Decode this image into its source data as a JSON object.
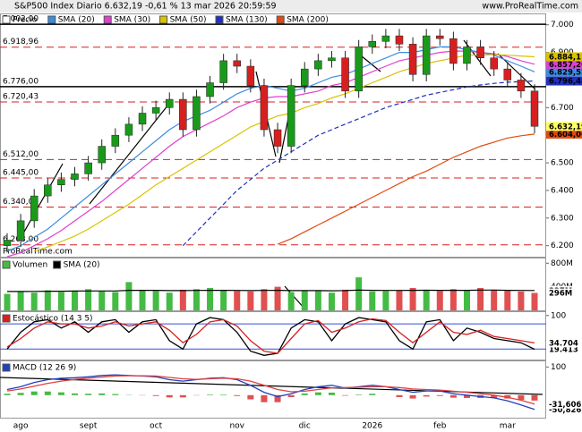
{
  "header": {
    "title": "S&P500 Index Diario 6.632,19 -0,61 % 13 mar 2026 20:59:59",
    "site": "www.ProRealTime.com"
  },
  "chart_data": [
    {
      "type": "candlestick",
      "legend_name": "Precio",
      "watermark": "ProRealTime.com",
      "categories": [
        null,
        "ago",
        null,
        null,
        null,
        null,
        "sept",
        null,
        null,
        null,
        null,
        "oct",
        null,
        null,
        null,
        null,
        null,
        "nov",
        null,
        null,
        null,
        null,
        "dic",
        null,
        null,
        null,
        null,
        "2026",
        null,
        null,
        null,
        null,
        "feb",
        null,
        null,
        null,
        null,
        "mar",
        null,
        null
      ],
      "open": [
        6200,
        6220,
        6290,
        6380,
        6420,
        6440,
        6460,
        6500,
        6560,
        6600,
        6640,
        6680,
        6700,
        6730,
        6620,
        6740,
        6790,
        6870,
        6850,
        6780,
        6620,
        6560,
        6780,
        6840,
        6870,
        6880,
        6760,
        6920,
        6940,
        6960,
        6930,
        6820,
        6960,
        6950,
        6860,
        6920,
        6880,
        6840,
        6800,
        6760
      ],
      "high": [
        6245,
        6315,
        6405,
        6445,
        6465,
        6485,
        6525,
        6585,
        6625,
        6665,
        6705,
        6725,
        6755,
        6755,
        6765,
        6815,
        6895,
        6895,
        6875,
        6805,
        6645,
        6805,
        6865,
        6895,
        6905,
        6905,
        6945,
        6965,
        6985,
        6985,
        6955,
        6985,
        6985,
        6975,
        6945,
        6945,
        6905,
        6865,
        6825,
        6785
      ],
      "low": [
        6175,
        6195,
        6265,
        6355,
        6395,
        6415,
        6435,
        6475,
        6535,
        6575,
        6615,
        6655,
        6675,
        6595,
        6595,
        6715,
        6765,
        6825,
        6755,
        6595,
        6535,
        6535,
        6755,
        6815,
        6845,
        6735,
        6735,
        6895,
        6915,
        6905,
        6795,
        6795,
        6925,
        6835,
        6835,
        6855,
        6815,
        6775,
        6735,
        6607
      ],
      "close": [
        6220,
        6290,
        6380,
        6420,
        6440,
        6460,
        6500,
        6560,
        6600,
        6640,
        6680,
        6700,
        6730,
        6620,
        6740,
        6790,
        6870,
        6850,
        6780,
        6620,
        6560,
        6780,
        6840,
        6870,
        6880,
        6760,
        6920,
        6940,
        6960,
        6930,
        6820,
        6960,
        6950,
        6860,
        6920,
        6880,
        6840,
        6800,
        6760,
        6632.19
      ],
      "last_label": "6.632,19",
      "up_color": "#1a9a1a",
      "down_color": "#d62020",
      "last_color": "#ffff66",
      "series": [
        {
          "name": "SMA (20)",
          "color": "#3b8de0",
          "last_label": "6.829,52",
          "values": [
            6180,
            6200,
            6230,
            6260,
            6300,
            6340,
            6380,
            6420,
            6460,
            6500,
            6540,
            6580,
            6620,
            6650,
            6670,
            6690,
            6720,
            6750,
            6770,
            6780,
            6770,
            6760,
            6770,
            6790,
            6810,
            6820,
            6840,
            6860,
            6880,
            6900,
            6900,
            6910,
            6920,
            6920,
            6910,
            6900,
            6890,
            6870,
            6850,
            6829.52
          ]
        },
        {
          "name": "SMA (30)",
          "color": "#e040d0",
          "last_label": "6.857,26",
          "values": [
            6160,
            6175,
            6200,
            6225,
            6255,
            6290,
            6325,
            6360,
            6400,
            6440,
            6480,
            6520,
            6560,
            6595,
            6620,
            6645,
            6670,
            6700,
            6720,
            6735,
            6740,
            6740,
            6750,
            6760,
            6780,
            6790,
            6810,
            6830,
            6850,
            6870,
            6880,
            6890,
            6900,
            6905,
            6905,
            6900,
            6895,
            6885,
            6870,
            6857.26
          ]
        },
        {
          "name": "SMA (50)",
          "color": "#d8c400",
          "last_label": "6.884,11",
          "values": [
            null,
            null,
            6180,
            6195,
            6215,
            6235,
            6260,
            6290,
            6320,
            6350,
            6385,
            6420,
            6450,
            6480,
            6510,
            6540,
            6570,
            6600,
            6630,
            6650,
            6670,
            6680,
            6700,
            6715,
            6735,
            6750,
            6770,
            6790,
            6810,
            6830,
            6845,
            6860,
            6870,
            6880,
            6890,
            6890,
            6892,
            6890,
            6887,
            6884.11
          ]
        },
        {
          "name": "SMA (130)",
          "color": "#2030c0",
          "dash": true,
          "last_label": "6.796,48",
          "values": [
            null,
            null,
            null,
            null,
            null,
            null,
            null,
            null,
            null,
            null,
            null,
            null,
            null,
            6200,
            6250,
            6300,
            6350,
            6400,
            6440,
            6480,
            6510,
            6540,
            6570,
            6600,
            6620,
            6640,
            6660,
            6680,
            6700,
            6715,
            6730,
            6745,
            6755,
            6765,
            6775,
            6782,
            6788,
            6792,
            6794,
            6796.48
          ]
        },
        {
          "name": "SMA (200)",
          "color": "#e04a10",
          "last_label": "6.604,06",
          "values": [
            null,
            null,
            null,
            null,
            null,
            null,
            null,
            null,
            null,
            null,
            null,
            null,
            null,
            null,
            null,
            null,
            null,
            null,
            null,
            null,
            6205,
            6225,
            6250,
            6275,
            6300,
            6325,
            6350,
            6375,
            6400,
            6425,
            6450,
            6470,
            6495,
            6520,
            6540,
            6560,
            6575,
            6590,
            6598,
            6604.06
          ]
        }
      ],
      "ylim": [
        6160,
        7038
      ],
      "yticks": [
        {
          "value": 7000,
          "label": "7.000"
        },
        {
          "value": 6900,
          "label": "6.900"
        },
        {
          "value": 6800,
          "label": "6.800"
        },
        {
          "value": 6700,
          "label": "6.700"
        },
        {
          "value": 6600,
          "label": "6.600"
        },
        {
          "value": 6500,
          "label": "6.500"
        },
        {
          "value": 6400,
          "label": "6.400"
        },
        {
          "value": 6300,
          "label": "6.300"
        },
        {
          "value": 6200,
          "label": "6.200"
        }
      ],
      "levels": [
        {
          "value": 7002,
          "label": "7.002,00",
          "color": "#000000",
          "dash": false
        },
        {
          "value": 6918.96,
          "label": "6.918,96",
          "color": "#d62020",
          "dash": true
        },
        {
          "value": 6776,
          "label": "6.776,00",
          "color": "#000000",
          "dash": false
        },
        {
          "value": 6720.43,
          "label": "6.720,43",
          "color": "#d62020",
          "dash": true
        },
        {
          "value": 6512,
          "label": "6.512,00",
          "color": "#d62020",
          "dash": true
        },
        {
          "value": 6445,
          "label": "6.445,00",
          "color": "#d62020",
          "dash": true
        },
        {
          "value": 6340,
          "label": "6.340,00",
          "color": "#d62020",
          "dash": true
        },
        {
          "value": 6203,
          "label": "6.203,00",
          "color": "#d62020",
          "dash": true
        }
      ]
    },
    {
      "type": "bar",
      "up_color": "#44bb44",
      "down_color": "#e05050",
      "series": [
        {
          "name": "Volumen",
          "color": "#44bb44",
          "last_label": "296M",
          "values": [
            280,
            320,
            300,
            340,
            310,
            330,
            360,
            320,
            310,
            480,
            340,
            330,
            300,
            350,
            360,
            380,
            340,
            330,
            320,
            360,
            400,
            310,
            330,
            340,
            300,
            350,
            560,
            320,
            330,
            340,
            380,
            350,
            330,
            360,
            340,
            380,
            350,
            330,
            320,
            296
          ]
        },
        {
          "name": "SMA (20)",
          "color": "#000000",
          "last_label": "337M",
          "values": [
            320,
            320,
            322,
            325,
            325,
            328,
            330,
            330,
            330,
            340,
            340,
            340,
            335,
            335,
            338,
            340,
            340,
            338,
            335,
            338,
            340,
            335,
            335,
            335,
            332,
            335,
            345,
            340,
            338,
            338,
            340,
            342,
            340,
            340,
            340,
            345,
            345,
            340,
            338,
            337
          ]
        }
      ],
      "ylim": [
        0,
        880
      ],
      "yticks": [
        {
          "value": 400,
          "label": "400M"
        },
        {
          "value": 800,
          "label": "800M"
        }
      ]
    },
    {
      "type": "line",
      "title": "Estocástico (14 3 5)",
      "series": [
        {
          "color": "#000000",
          "last_label": "19.413",
          "values": [
            20,
            60,
            85,
            90,
            70,
            85,
            60,
            85,
            90,
            60,
            85,
            90,
            40,
            20,
            80,
            95,
            90,
            60,
            15,
            5,
            10,
            70,
            90,
            85,
            40,
            80,
            95,
            90,
            85,
            40,
            20,
            85,
            90,
            40,
            70,
            60,
            45,
            40,
            35,
            19.413
          ]
        },
        {
          "color": "#d62020",
          "last_label": "34.704",
          "values": [
            25,
            45,
            70,
            85,
            80,
            80,
            70,
            75,
            85,
            75,
            80,
            85,
            65,
            35,
            55,
            85,
            90,
            75,
            40,
            15,
            10,
            45,
            80,
            88,
            60,
            70,
            85,
            92,
            88,
            60,
            35,
            60,
            85,
            60,
            55,
            65,
            50,
            45,
            40,
            34.704
          ]
        }
      ],
      "levels": [
        80,
        20
      ],
      "level_color": "#3050d0",
      "ylim": [
        -5,
        108
      ],
      "yticks": [
        100
      ]
    },
    {
      "type": "macd",
      "title": "MACD (12 26 9)",
      "series": [
        {
          "color": "#2040c0",
          "last_label": "-50,826",
          "values": [
            20,
            30,
            45,
            55,
            60,
            62,
            65,
            70,
            72,
            70,
            68,
            65,
            55,
            50,
            55,
            60,
            62,
            55,
            35,
            10,
            -5,
            5,
            20,
            30,
            35,
            25,
            30,
            35,
            30,
            20,
            10,
            15,
            15,
            5,
            0,
            -5,
            -10,
            -20,
            -35,
            -50.826
          ]
        },
        {
          "color": "#e04040",
          "last_label": "-31,606",
          "values": [
            15,
            22,
            32,
            42,
            50,
            56,
            60,
            64,
            68,
            69,
            69,
            68,
            63,
            58,
            56,
            58,
            60,
            58,
            50,
            35,
            20,
            12,
            14,
            20,
            26,
            27,
            28,
            30,
            30,
            27,
            22,
            20,
            18,
            14,
            10,
            5,
            0,
            -8,
            -18,
            -31.606
          ]
        }
      ],
      "histogram": [
        5,
        8,
        13,
        13,
        10,
        6,
        5,
        6,
        4,
        1,
        -1,
        -3,
        -8,
        -8,
        -1,
        2,
        2,
        -3,
        -15,
        -25,
        -25,
        -7,
        6,
        10,
        9,
        -2,
        2,
        5,
        0,
        -7,
        -12,
        -5,
        -3,
        -9,
        -10,
        -10,
        -10,
        -12,
        -17,
        -19.22
      ],
      "up_color": "#44bb44",
      "down_color": "#e05050",
      "ylim": [
        -80,
        120
      ],
      "yticks": [
        100
      ]
    }
  ]
}
